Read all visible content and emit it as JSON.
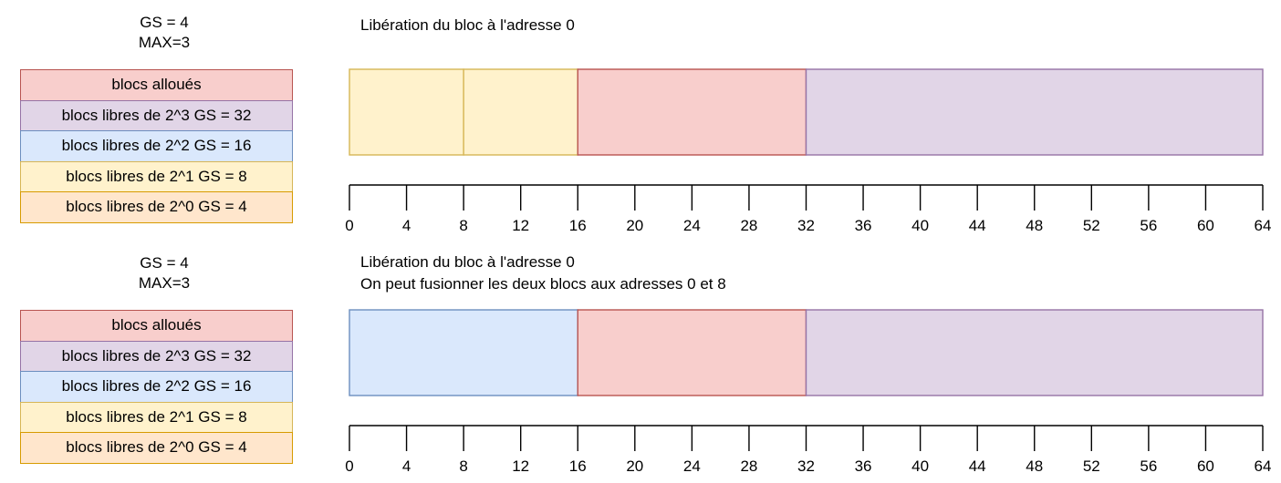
{
  "colors": {
    "allocated_fill": "#f8cecc",
    "allocated_stroke": "#b85450",
    "free3_fill": "#e1d5e7",
    "free3_stroke": "#9673a6",
    "free2_fill": "#dae8fc",
    "free2_stroke": "#6c8ebf",
    "free1_fill": "#fff2cc",
    "free1_stroke": "#d6b656",
    "free0_fill": "#ffe6cc",
    "free0_stroke": "#d79b00"
  },
  "panels": [
    {
      "params": [
        "GS = 4",
        "MAX=3"
      ],
      "caption": [
        "Libération du bloc à l'adresse 0"
      ],
      "legend": [
        {
          "label": "blocs alloués",
          "kind": "allocated"
        },
        {
          "label": "blocs libres de 2^3 GS = 32",
          "kind": "free3"
        },
        {
          "label": "blocs libres de 2^2 GS = 16",
          "kind": "free2"
        },
        {
          "label": "blocs libres de 2^1 GS = 8",
          "kind": "free1"
        },
        {
          "label": "blocs libres de 2^0 GS = 4",
          "kind": "free0"
        }
      ],
      "blocks": [
        {
          "start": 0,
          "end": 8,
          "kind": "free1"
        },
        {
          "start": 8,
          "end": 16,
          "kind": "free1"
        },
        {
          "start": 16,
          "end": 32,
          "kind": "allocated"
        },
        {
          "start": 32,
          "end": 64,
          "kind": "free3"
        }
      ],
      "axis": {
        "min": 0,
        "max": 64,
        "ticks": [
          "0",
          "4",
          "8",
          "12",
          "16",
          "20",
          "24",
          "28",
          "32",
          "36",
          "40",
          "44",
          "48",
          "52",
          "56",
          "60",
          "64"
        ]
      }
    },
    {
      "params": [
        "GS = 4",
        "MAX=3"
      ],
      "caption": [
        "Libération du bloc à l'adresse 0",
        "On peut fusionner les deux blocs aux adresses 0 et 8"
      ],
      "legend": [
        {
          "label": "blocs alloués",
          "kind": "allocated"
        },
        {
          "label": "blocs libres de 2^3 GS = 32",
          "kind": "free3"
        },
        {
          "label": "blocs libres de 2^2 GS = 16",
          "kind": "free2"
        },
        {
          "label": "blocs libres de 2^1 GS = 8",
          "kind": "free1"
        },
        {
          "label": "blocs libres de 2^0 GS = 4",
          "kind": "free0"
        }
      ],
      "blocks": [
        {
          "start": 0,
          "end": 16,
          "kind": "free2"
        },
        {
          "start": 16,
          "end": 32,
          "kind": "allocated"
        },
        {
          "start": 32,
          "end": 64,
          "kind": "free3"
        }
      ],
      "axis": {
        "min": 0,
        "max": 64,
        "ticks": [
          "0",
          "4",
          "8",
          "12",
          "16",
          "20",
          "24",
          "28",
          "32",
          "36",
          "40",
          "44",
          "48",
          "52",
          "56",
          "60",
          "64"
        ]
      }
    }
  ]
}
